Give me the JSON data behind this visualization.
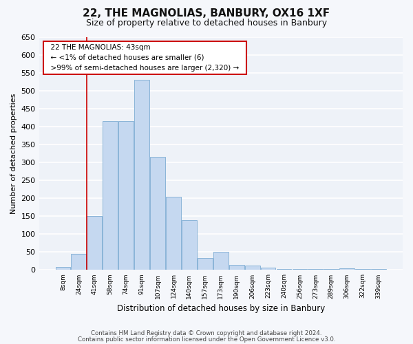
{
  "title": "22, THE MAGNOLIAS, BANBURY, OX16 1XF",
  "subtitle": "Size of property relative to detached houses in Banbury",
  "xlabel": "Distribution of detached houses by size in Banbury",
  "ylabel": "Number of detached properties",
  "bar_color": "#c5d8f0",
  "bar_edge_color": "#8ab4d8",
  "background_color": "#eef2f8",
  "grid_color": "#ffffff",
  "ylim": [
    0,
    650
  ],
  "yticks": [
    0,
    50,
    100,
    150,
    200,
    250,
    300,
    350,
    400,
    450,
    500,
    550,
    600,
    650
  ],
  "bin_labels": [
    "8sqm",
    "24sqm",
    "41sqm",
    "58sqm",
    "74sqm",
    "91sqm",
    "107sqm",
    "124sqm",
    "140sqm",
    "157sqm",
    "173sqm",
    "190sqm",
    "206sqm",
    "223sqm",
    "240sqm",
    "256sqm",
    "273sqm",
    "289sqm",
    "306sqm",
    "322sqm",
    "339sqm"
  ],
  "bar_heights": [
    8,
    45,
    150,
    415,
    415,
    530,
    315,
    205,
    140,
    33,
    50,
    15,
    12,
    7,
    3,
    3,
    2,
    2,
    5,
    2,
    2
  ],
  "property_line_x": 1.5,
  "annotation_line1": "22 THE MAGNOLIAS: 43sqm",
  "annotation_line2": "← <1% of detached houses are smaller (6)",
  "annotation_line3": ">99% of semi-detached houses are larger (2,320) →",
  "annotation_box_color": "#ffffff",
  "annotation_box_edge_color": "#cc0000",
  "vline_color": "#cc0000",
  "footer_line1": "Contains HM Land Registry data © Crown copyright and database right 2024.",
  "footer_line2": "Contains public sector information licensed under the Open Government Licence v3.0."
}
